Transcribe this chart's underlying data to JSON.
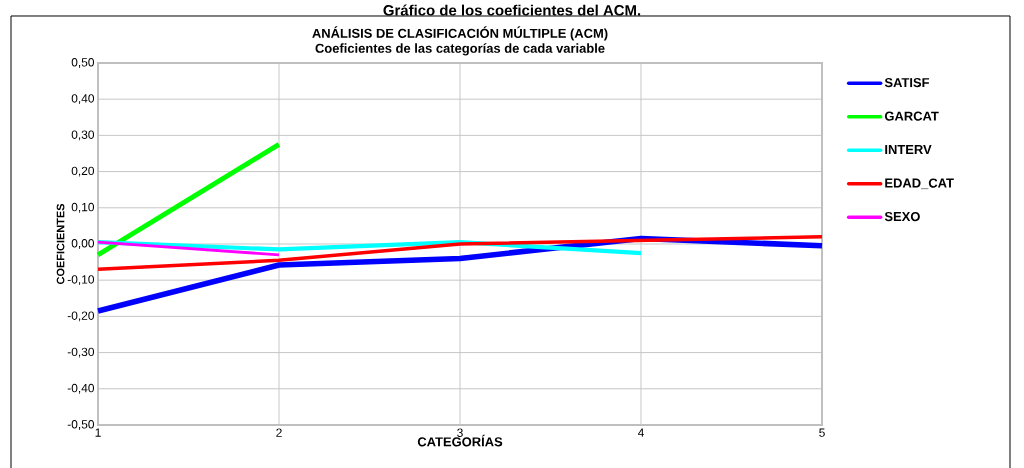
{
  "chart_data": {
    "type": "line",
    "title": "ANÁLISIS DE CLASIFICACIÓN MÚLTIPLE (ACM)",
    "subtitle": "Coeficientes de las categorías de cada variable",
    "annotations": [
      "Gráfico de los coeficientes del ACM."
    ],
    "xlabel": "CATEGORÍAS",
    "ylabel": "COEFICIENTES",
    "xlim": [
      1,
      5
    ],
    "xticks": [
      1,
      2,
      3,
      4,
      5
    ],
    "ylim": [
      -0.5,
      0.5
    ],
    "yticks": [
      {
        "value": -0.5,
        "label": "-0,50"
      },
      {
        "value": -0.4,
        "label": "-0,40"
      },
      {
        "value": -0.3,
        "label": "-0,30"
      },
      {
        "value": -0.2,
        "label": "-0,20"
      },
      {
        "value": -0.1,
        "label": "-0,10"
      },
      {
        "value": 0,
        "label": "0,00"
      },
      {
        "value": 0.1,
        "label": "0,10"
      },
      {
        "value": 0.2,
        "label": "0,20"
      },
      {
        "value": 0.3,
        "label": "0,30"
      },
      {
        "value": 0.4,
        "label": "0,40"
      },
      {
        "value": 0.5,
        "label": "0,50"
      }
    ],
    "grid": true,
    "legend": "right",
    "marker": "none",
    "line_style": "solid",
    "series": [
      {
        "name": "SATISF",
        "color": "#0000ff",
        "x": [
          1,
          2,
          3,
          4,
          5
        ],
        "values": [
          -0.185,
          -0.058,
          -0.04,
          0.015,
          -0.005
        ]
      },
      {
        "name": "GARCAT",
        "color": "#00ff00",
        "x": [
          1,
          2
        ],
        "values": [
          -0.03,
          0.275
        ]
      },
      {
        "name": "INTERV",
        "color": "#00ffff",
        "x": [
          1,
          2,
          3,
          4
        ],
        "values": [
          0.005,
          -0.015,
          0.005,
          -0.025
        ]
      },
      {
        "name": "EDAD_CAT",
        "color": "#ff0000",
        "x": [
          1,
          2,
          3,
          4,
          5
        ],
        "values": [
          -0.07,
          -0.045,
          0.0,
          0.01,
          0.02
        ]
      },
      {
        "name": "SEXO",
        "color": "#ff00ff",
        "x": [
          1,
          2
        ],
        "values": [
          0.005,
          -0.03
        ]
      }
    ]
  }
}
